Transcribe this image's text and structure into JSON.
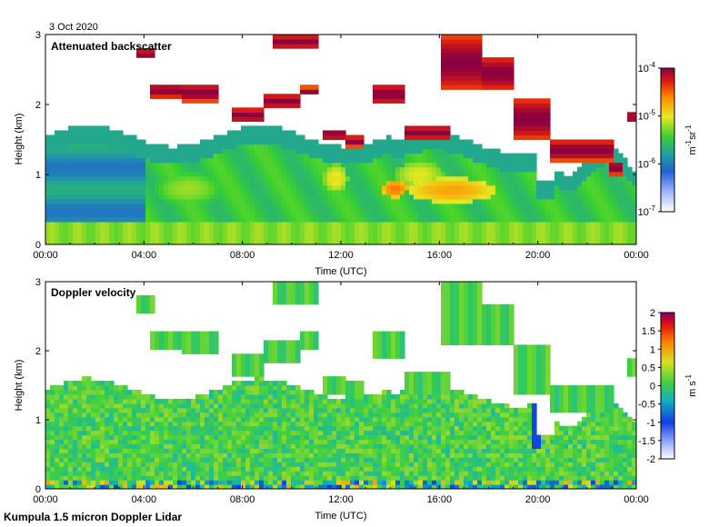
{
  "date": "3 Oct 2020",
  "footer": "Kumpula 1.5 micron Doppler Lidar",
  "colors": {
    "frame": "#000000",
    "background": "#ffffff",
    "colormap": "jet-like (white-blue-green-yellow-orange-red-maroon)"
  },
  "chart_data": [
    {
      "type": "heatmap",
      "title": "Attenuated backscatter",
      "xlabel": "Time (UTC)",
      "ylabel": "Height (km)",
      "xlim": [
        "00:00",
        "24:00"
      ],
      "ylim": [
        0,
        3
      ],
      "x_ticks": [
        "00:00",
        "04:00",
        "08:00",
        "12:00",
        "16:00",
        "20:00",
        "00:00"
      ],
      "y_ticks": [
        "0",
        "1",
        "2",
        "3"
      ],
      "colorbar": {
        "scale": "log",
        "range": [
          1e-07,
          0.0001
        ],
        "ticks": [
          {
            "base": "10",
            "exp": "-7"
          },
          {
            "base": "10",
            "exp": "-6"
          },
          {
            "base": "10",
            "exp": "-5"
          },
          {
            "base": "10",
            "exp": "-4"
          }
        ],
        "unit_parts": [
          {
            "base": "m",
            "exp": "-1"
          },
          {
            "base": " sr",
            "exp": "-1"
          }
        ]
      }
    },
    {
      "type": "heatmap",
      "title": "Doppler velocity",
      "xlabel": "Time (UTC)",
      "ylabel": "Height (km)",
      "xlim": [
        "00:00",
        "24:00"
      ],
      "ylim": [
        0,
        3
      ],
      "x_ticks": [
        "00:00",
        "04:00",
        "08:00",
        "12:00",
        "16:00",
        "20:00",
        "00:00"
      ],
      "y_ticks": [
        "0",
        "1",
        "2",
        "3"
      ],
      "colorbar": {
        "scale": "linear",
        "range": [
          -2,
          2
        ],
        "ticks": [
          "2",
          "1.5",
          "1",
          "0.5",
          "0",
          "-0.5",
          "-1",
          "-1.5",
          "-2"
        ],
        "unit_parts": [
          {
            "base": "m s",
            "exp": "-1"
          }
        ]
      }
    }
  ]
}
